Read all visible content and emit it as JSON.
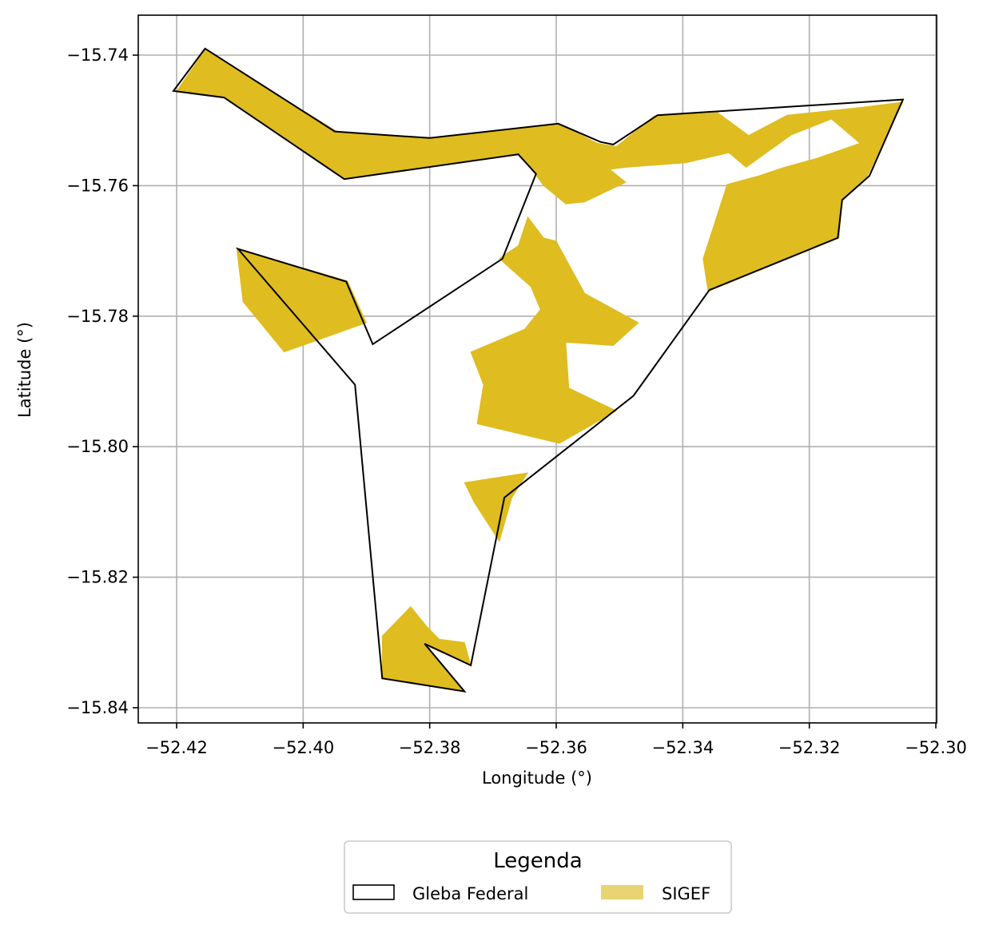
{
  "chart_data": {
    "type": "map",
    "xlabel": "Longitude (°)",
    "ylabel": "Latitude (°)",
    "xlim": [
      -52.425,
      -52.299
    ],
    "ylim": [
      -15.8425,
      -15.7335
    ],
    "xticks": [
      -52.42,
      -52.4,
      -52.38,
      -52.36,
      -52.34,
      -52.32,
      -52.3
    ],
    "yticks": [
      -15.74,
      -15.76,
      -15.78,
      -15.8,
      -15.82,
      -15.84
    ],
    "xtick_labels": [
      "−52.42",
      "−52.40",
      "−52.38",
      "−52.36",
      "−52.34",
      "−52.32",
      "−52.30"
    ],
    "ytick_labels": [
      "−15.74",
      "−15.76",
      "−15.78",
      "−15.80",
      "−15.82",
      "−15.84"
    ],
    "grid": true,
    "legend": {
      "title": "Legenda",
      "placement": "bottom-center",
      "entries": [
        {
          "label": "Gleba Federal",
          "style": "outline",
          "edge_color": "#000000"
        },
        {
          "label": "SIGEF",
          "style": "fill",
          "fill_color": "#dfbc1f",
          "legend_color": "#e8d470"
        }
      ]
    },
    "colors": {
      "sigef_fill": "#dfbc1f",
      "gleba_edge": "#000000",
      "grid": "#b0b0b0"
    },
    "layers": [
      {
        "name": "SIGEF",
        "polygons": [
          [
            [
              -52.42,
              -15.7455
            ],
            [
              -52.4155,
              -15.7392
            ],
            [
              -52.3945,
              -15.7518
            ],
            [
              -52.3805,
              -15.7528
            ],
            [
              -52.3595,
              -15.7505
            ],
            [
              -52.3535,
              -15.7535
            ],
            [
              -52.3505,
              -15.754
            ],
            [
              -52.3445,
              -15.7493
            ],
            [
              -52.3345,
              -15.7488
            ],
            [
              -52.3275,
              -15.7538
            ],
            [
              -52.3395,
              -15.7565
            ],
            [
              -52.349,
              -15.7572
            ],
            [
              -52.3515,
              -15.7575
            ],
            [
              -52.349,
              -15.7595
            ],
            [
              -52.3555,
              -15.7625
            ],
            [
              -52.3585,
              -15.7628
            ],
            [
              -52.362,
              -15.76
            ],
            [
              -52.3635,
              -15.758
            ],
            [
              -52.366,
              -15.7552
            ],
            [
              -52.3935,
              -15.759
            ],
            [
              -52.4125,
              -15.7465
            ]
          ],
          [
            [
              -52.3335,
              -15.7543
            ],
            [
              -52.3235,
              -15.7492
            ],
            [
              -52.3118,
              -15.748
            ],
            [
              -52.3052,
              -15.7472
            ],
            [
              -52.3108,
              -15.7585
            ],
            [
              -52.3148,
              -15.7622
            ],
            [
              -52.3153,
              -15.768
            ],
            [
              -52.336,
              -15.7762
            ],
            [
              -52.3368,
              -15.7712
            ],
            [
              -52.333,
              -15.7598
            ],
            [
              -52.328,
              -15.7585
            ],
            [
              -52.324,
              -15.7572
            ],
            [
              -52.3188,
              -15.7558
            ],
            [
              -52.312,
              -15.7535
            ],
            [
              -52.3165,
              -15.7498
            ],
            [
              -52.3228,
              -15.7522
            ],
            [
              -52.33,
              -15.7572
            ]
          ],
          [
            [
              -52.4105,
              -15.7697
            ],
            [
              -52.393,
              -15.7746
            ],
            [
              -52.39,
              -15.781
            ],
            [
              -52.403,
              -15.7855
            ],
            [
              -52.4095,
              -15.7778
            ]
          ],
          [
            [
              -52.366,
              -15.7692
            ],
            [
              -52.3645,
              -15.7648
            ],
            [
              -52.362,
              -15.768
            ],
            [
              -52.36,
              -15.7685
            ],
            [
              -52.3555,
              -15.7765
            ],
            [
              -52.347,
              -15.781
            ],
            [
              -52.351,
              -15.7845
            ],
            [
              -52.3585,
              -15.784
            ],
            [
              -52.358,
              -15.791
            ],
            [
              -52.3505,
              -15.7945
            ],
            [
              -52.3595,
              -15.7995
            ],
            [
              -52.3725,
              -15.7965
            ],
            [
              -52.3715,
              -15.7905
            ],
            [
              -52.3735,
              -15.7855
            ],
            [
              -52.365,
              -15.782
            ],
            [
              -52.3625,
              -15.779
            ],
            [
              -52.364,
              -15.7755
            ],
            [
              -52.369,
              -15.7712
            ],
            [
              -52.3685,
              -15.7708
            ]
          ],
          [
            [
              -52.3745,
              -15.8055
            ],
            [
              -52.3645,
              -15.804
            ],
            [
              -52.367,
              -15.8078
            ],
            [
              -52.369,
              -15.8145
            ],
            [
              -52.373,
              -15.8085
            ]
          ],
          [
            [
              -52.3875,
              -15.829
            ],
            [
              -52.383,
              -15.8245
            ],
            [
              -52.3805,
              -15.8275
            ],
            [
              -52.3785,
              -15.8295
            ],
            [
              -52.3745,
              -15.83
            ],
            [
              -52.3735,
              -15.8335
            ],
            [
              -52.3805,
              -15.8305
            ],
            [
              -52.3745,
              -15.8375
            ],
            [
              -52.3875,
              -15.8355
            ]
          ]
        ]
      },
      {
        "name": "Gleba Federal",
        "polygons": [
          [
            [
              -52.4205,
              -15.7455
            ],
            [
              -52.4155,
              -15.739
            ],
            [
              -52.395,
              -15.7517
            ],
            [
              -52.38,
              -15.7527
            ],
            [
              -52.3597,
              -15.7505
            ],
            [
              -52.353,
              -15.7533
            ],
            [
              -52.351,
              -15.7537
            ],
            [
              -52.344,
              -15.7492
            ],
            [
              -52.3052,
              -15.7468
            ],
            [
              -52.3105,
              -15.7585
            ],
            [
              -52.3148,
              -15.7622
            ],
            [
              -52.3155,
              -15.768
            ],
            [
              -52.3358,
              -15.776
            ],
            [
              -52.3478,
              -15.7922
            ],
            [
              -52.3682,
              -15.8078
            ],
            [
              -52.3735,
              -15.8335
            ],
            [
              -52.3808,
              -15.8302
            ],
            [
              -52.3745,
              -15.8375
            ],
            [
              -52.3875,
              -15.8355
            ],
            [
              -52.3918,
              -15.7905
            ],
            [
              -52.4103,
              -15.7697
            ],
            [
              -52.3932,
              -15.7747
            ],
            [
              -52.389,
              -15.7843
            ],
            [
              -52.3685,
              -15.7712
            ],
            [
              -52.3632,
              -15.7582
            ],
            [
              -52.366,
              -15.7552
            ],
            [
              -52.3935,
              -15.759
            ],
            [
              -52.4125,
              -15.7465
            ]
          ]
        ]
      }
    ]
  }
}
